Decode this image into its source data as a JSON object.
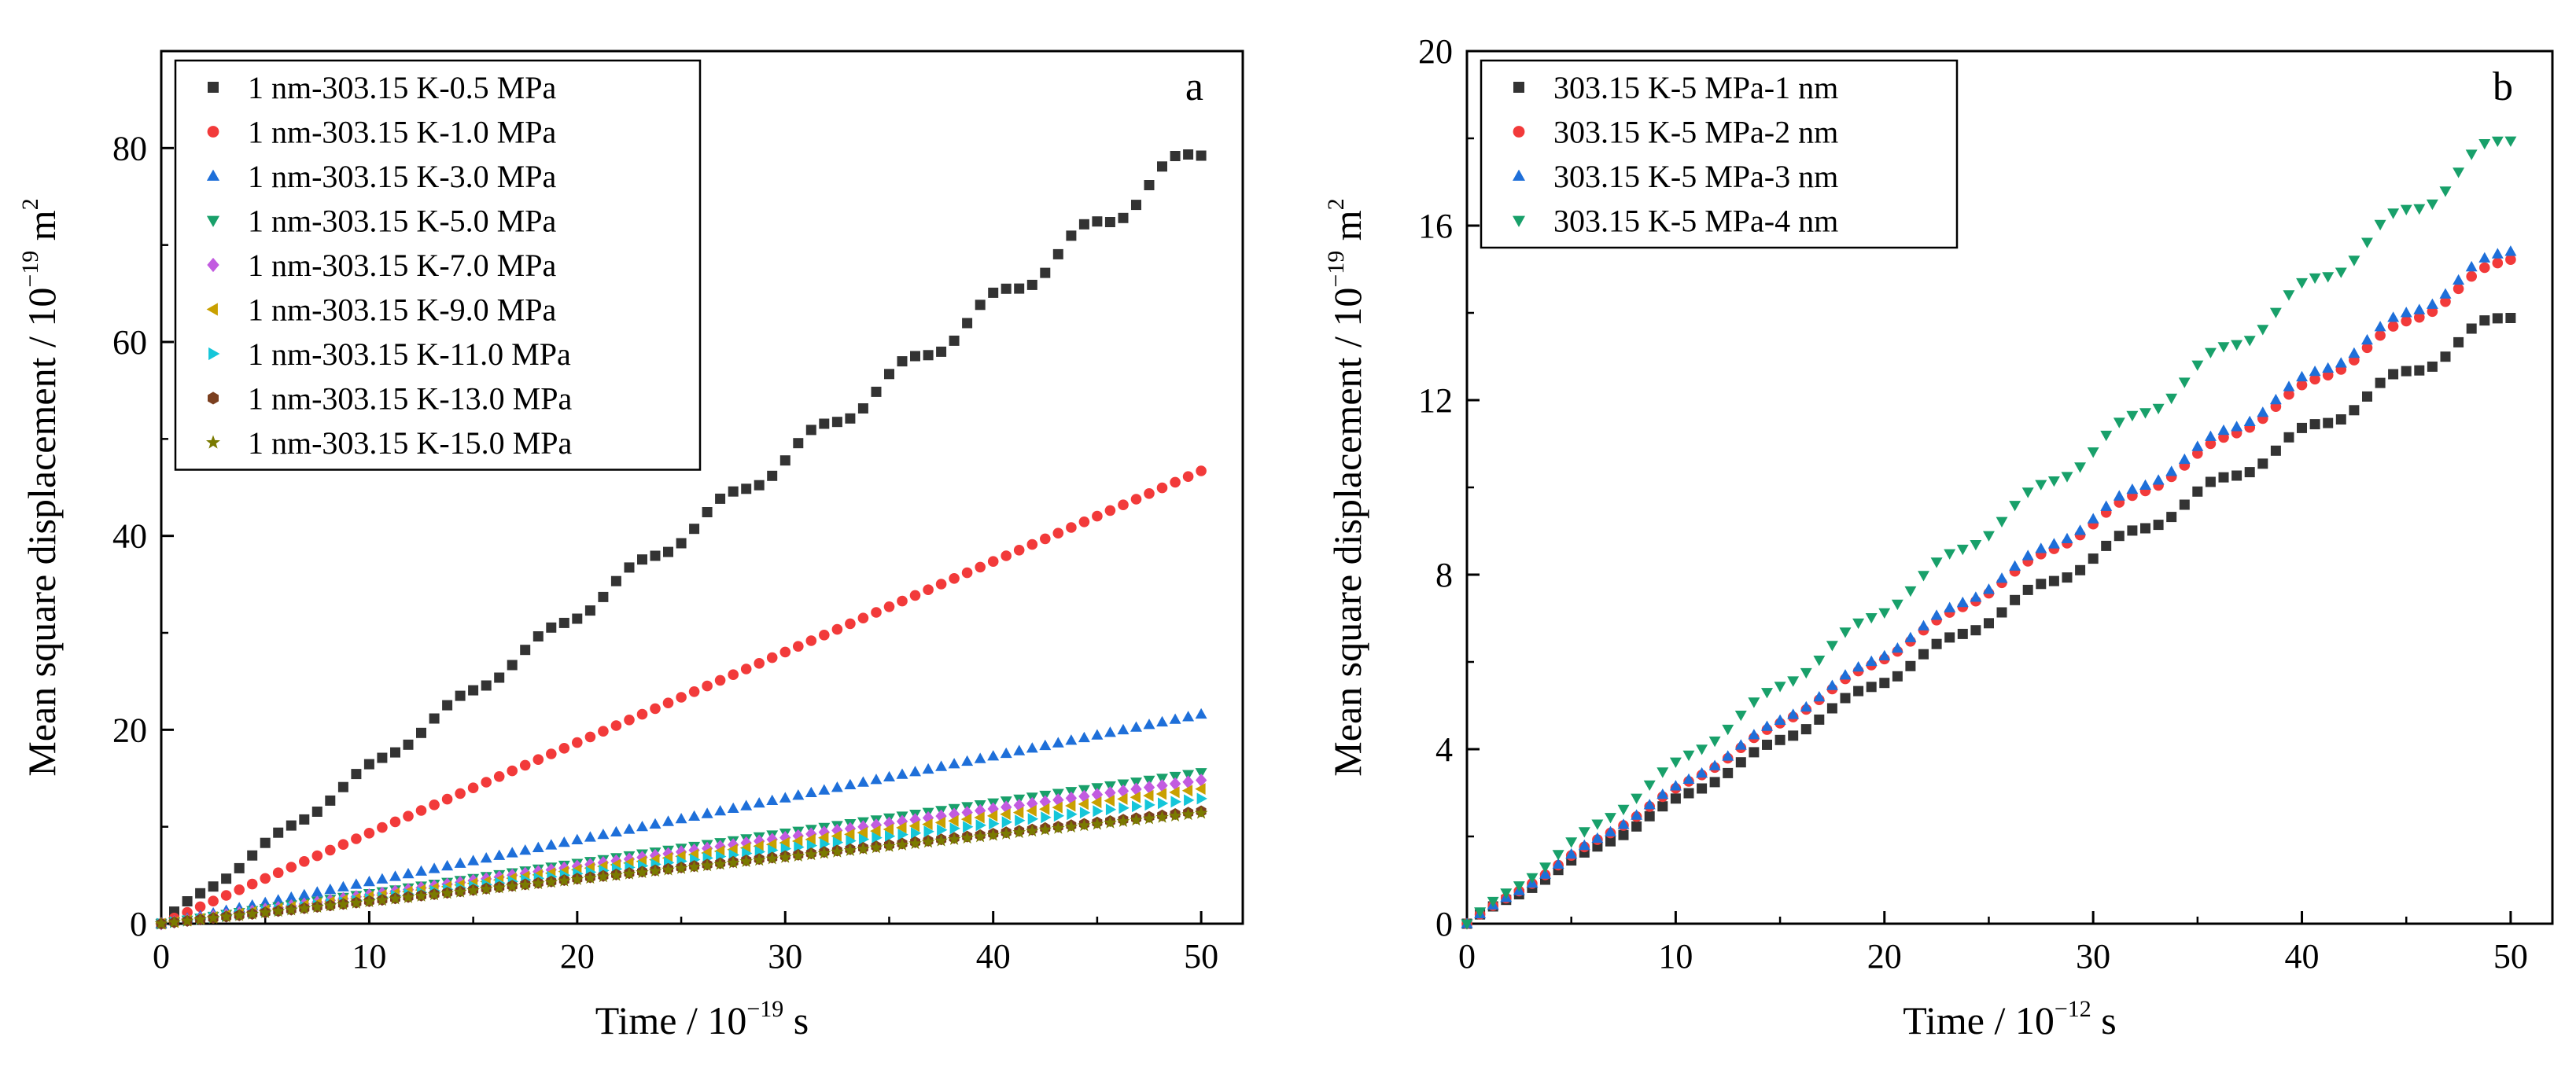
{
  "chart_data": [
    {
      "panel": "a",
      "type": "scatter",
      "xlabel": {
        "main": "Time / 10",
        "sup": "−19",
        "tail": " s"
      },
      "ylabel": {
        "main": "Mean square displacement / 10",
        "sup": "−19",
        "mid": " m",
        "sup2": "2"
      },
      "xlim": [
        0,
        52
      ],
      "ylim": [
        0,
        90
      ],
      "xticks": [
        0,
        10,
        20,
        30,
        40,
        50
      ],
      "yticks": [
        0,
        20,
        40,
        60,
        80
      ],
      "grid": false,
      "legend_position": "top-left",
      "points_per_series": 81,
      "series": [
        {
          "name": "1 nm-303.15 K-0.5 MPa",
          "color": "#333333",
          "marker": "square",
          "end_value": 80.0,
          "wiggle": 1.0
        },
        {
          "name": "1 nm-303.15 K-1.0 MPa",
          "color": "#f23a3a",
          "marker": "circle",
          "end_value": 46.7,
          "wiggle": 0
        },
        {
          "name": "1 nm-303.15 K-3.0 MPa",
          "color": "#1e6fd9",
          "marker": "triangle-up",
          "end_value": 21.6,
          "wiggle": 0
        },
        {
          "name": "1 nm-303.15 K-5.0 MPa",
          "color": "#18a06a",
          "marker": "triangle-down",
          "end_value": 15.6,
          "wiggle": 0
        },
        {
          "name": "1 nm-303.15 K-7.0 MPa",
          "color": "#c25be0",
          "marker": "diamond",
          "end_value": 14.8,
          "wiggle": 0
        },
        {
          "name": "1 nm-303.15 K-9.0 MPa",
          "color": "#c9a000",
          "marker": "triangle-left",
          "end_value": 13.9,
          "wiggle": 0
        },
        {
          "name": "1 nm-303.15 K-11.0 MPa",
          "color": "#15c6d9",
          "marker": "triangle-right",
          "end_value": 12.9,
          "wiggle": 0
        },
        {
          "name": "1 nm-303.15 K-13.0 MPa",
          "color": "#7b3f1f",
          "marker": "hexagon",
          "end_value": 11.6,
          "wiggle": 0
        },
        {
          "name": "1 nm-303.15 K-15.0 MPa",
          "color": "#7a7a00",
          "marker": "star",
          "end_value": 11.4,
          "wiggle": 0
        }
      ]
    },
    {
      "panel": "b",
      "type": "scatter",
      "xlabel": {
        "main": "Time / 10",
        "sup": "−12",
        "tail": " s"
      },
      "ylabel": {
        "main": "Mean square displacement / 10",
        "sup": "−19",
        "mid": " m",
        "sup2": "2"
      },
      "xlim": [
        0,
        52
      ],
      "ylim": [
        0,
        20
      ],
      "xticks": [
        0,
        10,
        20,
        30,
        40,
        50
      ],
      "yticks": [
        0,
        4,
        8,
        12,
        16,
        20
      ],
      "grid": false,
      "legend_position": "top-left",
      "points_per_series": 81,
      "series": [
        {
          "name": "303.15 K-5 MPa-1 nm",
          "color": "#333333",
          "marker": "square",
          "end_value": 14.0,
          "wiggle": 0.15
        },
        {
          "name": "303.15 K-5 MPa-2 nm",
          "color": "#f23a3a",
          "marker": "circle",
          "end_value": 15.3,
          "wiggle": 0.1
        },
        {
          "name": "303.15 K-5 MPa-3 nm",
          "color": "#1e6fd9",
          "marker": "triangle-up",
          "end_value": 15.5,
          "wiggle": 0.12
        },
        {
          "name": "303.15 K-5 MPa-4 nm",
          "color": "#18a06a",
          "marker": "triangle-down",
          "end_value": 18.1,
          "wiggle": 0.2
        }
      ]
    }
  ]
}
